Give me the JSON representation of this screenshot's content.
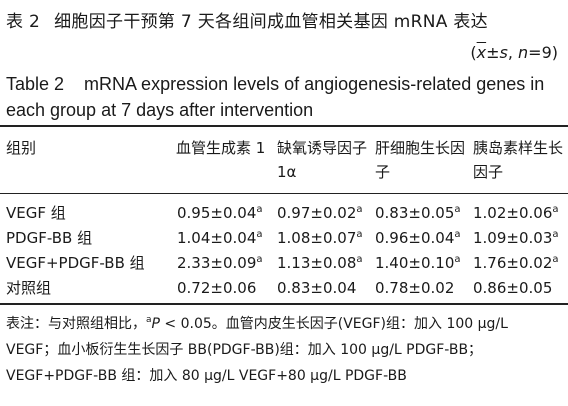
{
  "title_cn": {
    "number": "表 2",
    "text": "细胞因子干预第 7 天各组间成血管相关基因 mRNA 表达"
  },
  "stats": {
    "open": "(",
    "xbar": "x",
    "pm": "±",
    "s": "s",
    "comma": ", ",
    "n": "n",
    "n_value": "=9)"
  },
  "title_en": {
    "number": "Table 2",
    "text": "mRNA expression levels of angiogenesis-related genes in each group at 7 days after intervention"
  },
  "table": {
    "headers": {
      "group": "组别",
      "col1": "血管生成素 1",
      "col2": "缺氧诱导因子 1α",
      "col3": "肝细胞生长因子",
      "col4": "胰岛素样生长因子"
    },
    "rows": [
      {
        "group": "VEGF 组",
        "v1": "0.95±0.04",
        "s1": "a",
        "v2": "0.97±0.02",
        "s2": "a",
        "v3": "0.83±0.05",
        "s3": "a",
        "v4": "1.02±0.06",
        "s4": "a"
      },
      {
        "group": "PDGF-BB 组",
        "v1": "1.04±0.04",
        "s1": "a",
        "v2": "1.08±0.07",
        "s2": "a",
        "v3": "0.96±0.04",
        "s3": "a",
        "v4": "1.09±0.03",
        "s4": "a"
      },
      {
        "group": "VEGF+PDGF-BB 组",
        "v1": "2.33±0.09",
        "s1": "a",
        "v2": "1.13±0.08",
        "s2": "a",
        "v3": "1.40±0.10",
        "s3": "a",
        "v4": "1.76±0.02",
        "s4": "a"
      },
      {
        "group": "对照组",
        "v1": "0.72±0.06",
        "s1": "",
        "v2": "0.83±0.04",
        "s2": "",
        "v3": "0.78±0.02",
        "s3": "",
        "v4": "0.86±0.05",
        "s4": ""
      }
    ]
  },
  "notes": {
    "prefix": "表注：与对照组相比，",
    "sup": "a",
    "p": "P",
    "p_rest": " < 0.05。血管内皮生长因子(VEGF)组：加入 100 μg/L",
    "line2": "VEGF；血小板衍生生长因子 BB(PDGF-BB)组：加入  100  μg/L  PDGF-BB；",
    "line3": "VEGF+PDGF-BB 组：加入 80 μg/L VEGF+80 μg/L PDGF-BB"
  }
}
